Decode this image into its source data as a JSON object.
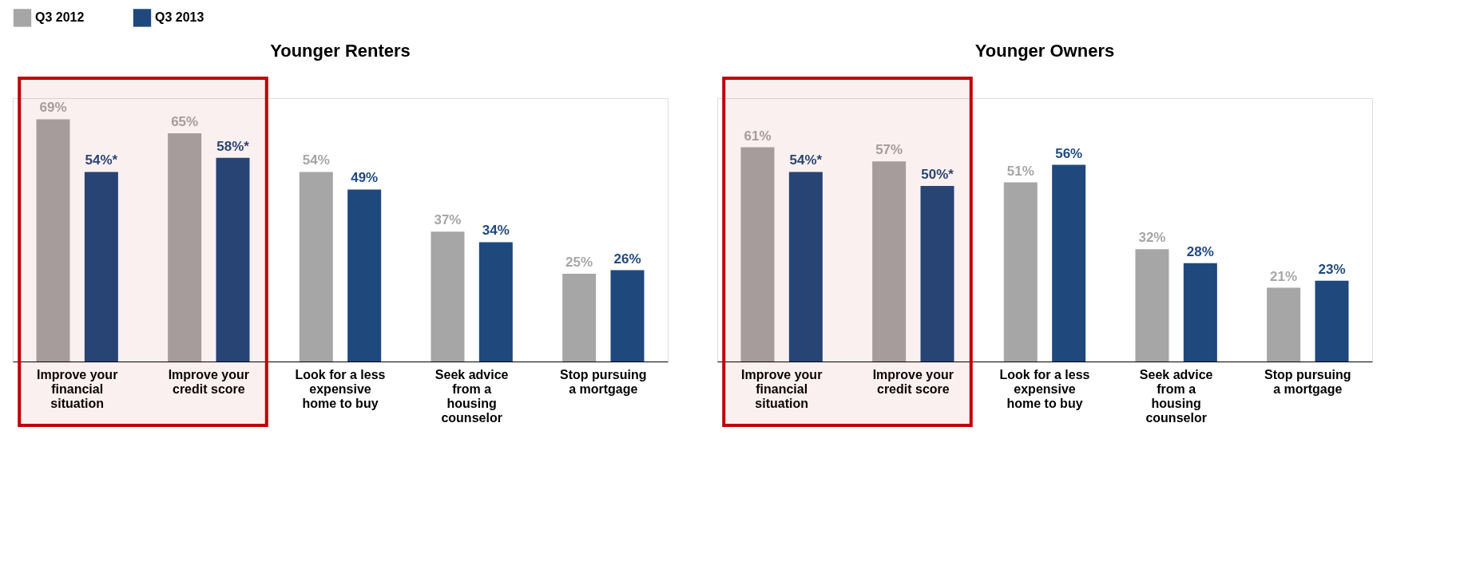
{
  "chart_data": [
    {
      "type": "bar",
      "title": "Younger Renters",
      "categories": [
        "Improve your\nfinancial\nsituation",
        "Improve your\ncredit score",
        "Look for a less\nexpensive\nhome to buy",
        "Seek advice\nfrom a\nhousing\ncounselor",
        "Stop pursuing\na mortgage"
      ],
      "series": [
        {
          "name": "Q3 2012",
          "color": "#a6a6a6",
          "values": [
            69,
            65,
            54,
            37,
            25
          ],
          "value_labels": [
            "69%",
            "65%",
            "54%",
            "37%",
            "25%"
          ]
        },
        {
          "name": "Q3 2013",
          "color": "#1f497d",
          "values": [
            54,
            58,
            49,
            34,
            26
          ],
          "value_labels": [
            "54%*",
            "58%*",
            "49%",
            "34%",
            "26%"
          ]
        }
      ],
      "ylim": [
        0,
        75
      ],
      "tick_labels": "x",
      "legend": "top",
      "grid": false,
      "bands": [
        {
          "axis": "x",
          "from": "Improve your\nfinancial\nsituation",
          "to": "Improve your\ncredit score",
          "color": "#c00000"
        }
      ]
    },
    {
      "type": "bar",
      "title": "Younger Owners",
      "categories": [
        "Improve your\nfinancial\nsituation",
        "Improve your\ncredit score",
        "Look for a less\nexpensive\nhome to buy",
        "Seek advice\nfrom a\nhousing\ncounselor",
        "Stop pursuing\na mortgage"
      ],
      "series": [
        {
          "name": "Q3 2012",
          "color": "#a6a6a6",
          "values": [
            61,
            57,
            51,
            32,
            21
          ],
          "value_labels": [
            "61%",
            "57%",
            "51%",
            "32%",
            "21%"
          ]
        },
        {
          "name": "Q3 2013",
          "color": "#1f497d",
          "values": [
            54,
            50,
            56,
            28,
            23
          ],
          "value_labels": [
            "54%*",
            "50%*",
            "56%",
            "28%",
            "23%"
          ]
        }
      ],
      "ylim": [
        0,
        75
      ],
      "tick_labels": "x",
      "legend": "top",
      "grid": false,
      "bands": [
        {
          "axis": "x",
          "from": "Improve your\nfinancial\nsituation",
          "to": "Improve your\ncredit score",
          "color": "#c00000"
        }
      ]
    }
  ]
}
